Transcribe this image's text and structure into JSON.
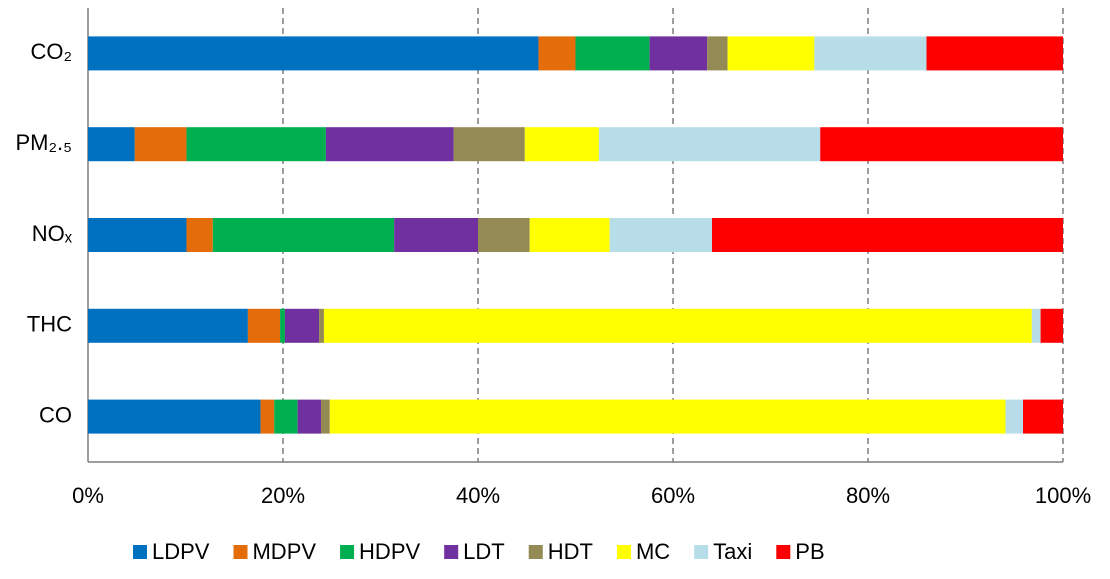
{
  "chart_data": {
    "type": "stacked-bar-horizontal",
    "categories": [
      "CO₂",
      "PM₂.₅",
      "NOₓ",
      "THC",
      "CO"
    ],
    "series": [
      {
        "name": "LDPV",
        "color": "#0070c0",
        "values": [
          46.2,
          4.8,
          10.1,
          16.4,
          17.7
        ]
      },
      {
        "name": "MDPV",
        "color": "#e46c0a",
        "values": [
          3.8,
          5.3,
          2.7,
          3.3,
          1.4
        ]
      },
      {
        "name": "HDPV",
        "color": "#00b050",
        "values": [
          7.6,
          14.3,
          18.6,
          0.5,
          2.4
        ]
      },
      {
        "name": "LDT",
        "color": "#7030a0",
        "values": [
          5.9,
          13.1,
          8.6,
          3.5,
          2.4
        ]
      },
      {
        "name": "HDT",
        "color": "#948a54",
        "values": [
          2.1,
          7.3,
          5.3,
          0.5,
          0.9
        ]
      },
      {
        "name": "MC",
        "color": "#ffff00",
        "values": [
          8.9,
          7.6,
          8.2,
          72.6,
          69.3
        ]
      },
      {
        "name": "Taxi",
        "color": "#b7dee8",
        "values": [
          11.5,
          22.7,
          10.5,
          0.9,
          1.8
        ]
      },
      {
        "name": "PB",
        "color": "#ff0000",
        "values": [
          14.0,
          24.9,
          36.0,
          2.3,
          4.1
        ]
      }
    ],
    "xlim": [
      0,
      100
    ],
    "xticks": [
      {
        "value": 0,
        "label": "0%"
      },
      {
        "value": 20,
        "label": "20%"
      },
      {
        "value": 40,
        "label": "40%"
      },
      {
        "value": 60,
        "label": "60%"
      },
      {
        "value": 80,
        "label": "80%"
      },
      {
        "value": 100,
        "label": "100%"
      }
    ],
    "grid": true,
    "legend": "bottom"
  }
}
